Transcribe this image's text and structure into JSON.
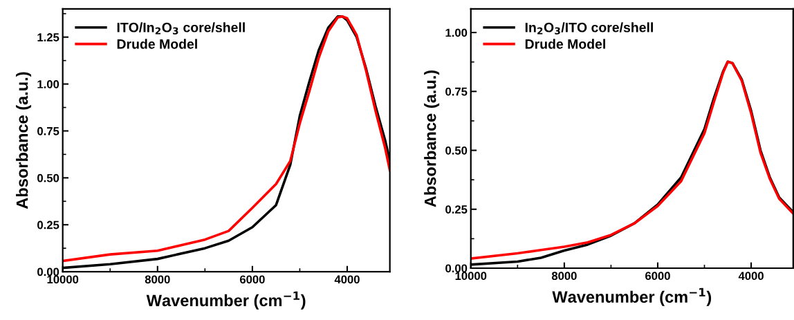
{
  "chart_data": [
    {
      "type": "line",
      "xlabel": "Wavenumber (cm$^{−1}$)",
      "ylabel": "Absorbance (a.u.)",
      "xlim": [
        10000,
        3100
      ],
      "xticks": [
        10000,
        8000,
        6000,
        4000
      ],
      "ylim": [
        0,
        1.4
      ],
      "yticks": [
        {
          "value": 0,
          "label": "0.00"
        },
        {
          "value": 0.25,
          "label": "0.25"
        },
        {
          "value": 0.5,
          "label": "0.50"
        },
        {
          "value": 0.75,
          "label": "0.75"
        },
        {
          "value": 1.0,
          "label": "1.00"
        },
        {
          "value": 1.25,
          "label": "1.25"
        }
      ],
      "grid": false,
      "legend": "top left",
      "line_style": "solid",
      "marker": "none",
      "x": [
        10000,
        9000,
        8000,
        7000,
        6500,
        6000,
        5500,
        5200,
        5000,
        4800,
        4600,
        4400,
        4200,
        4100,
        4000,
        3800,
        3600,
        3400,
        3200,
        3100
      ],
      "series": [
        {
          "name": "ITO/In$_{2}$O$_{3}$ core/shell",
          "color": "#000000",
          "values": [
            0.02,
            0.04,
            0.068,
            0.125,
            0.165,
            0.237,
            0.355,
            0.57,
            0.83,
            1.01,
            1.18,
            1.3,
            1.36,
            1.36,
            1.34,
            1.25,
            1.08,
            0.88,
            0.7,
            0.59
          ]
        },
        {
          "name": "Drude Model",
          "color": "#ff0000",
          "values": [
            0.057,
            0.092,
            0.112,
            0.171,
            0.217,
            0.34,
            0.467,
            0.59,
            0.79,
            0.96,
            1.14,
            1.28,
            1.355,
            1.36,
            1.35,
            1.26,
            1.07,
            0.855,
            0.66,
            0.54
          ]
        }
      ]
    },
    {
      "type": "line",
      "xlabel": "Wavenumber (cm$^{−1}$)",
      "ylabel": "Absorbance (a.u.)",
      "xlim": [
        10000,
        3100
      ],
      "xticks": [
        10000,
        8000,
        6000,
        4000
      ],
      "ylim": [
        0,
        1.1
      ],
      "yticks": [
        {
          "value": 0,
          "label": "0.00"
        },
        {
          "value": 0.25,
          "label": "0.25"
        },
        {
          "value": 0.5,
          "label": "0.50"
        },
        {
          "value": 0.75,
          "label": "0.75"
        },
        {
          "value": 1.0,
          "label": "1.00"
        }
      ],
      "grid": false,
      "legend": "top left",
      "line_style": "solid",
      "marker": "none",
      "x": [
        10000,
        9000,
        8500,
        8000,
        7500,
        7000,
        6500,
        6000,
        5500,
        5000,
        4800,
        4600,
        4500,
        4400,
        4200,
        4000,
        3800,
        3600,
        3400,
        3100
      ],
      "series": [
        {
          "name": "In$_{2}$O$_{3}$/ITO core/shell",
          "color": "#000000",
          "values": [
            0.015,
            0.028,
            0.044,
            0.075,
            0.1,
            0.138,
            0.19,
            0.27,
            0.385,
            0.59,
            0.72,
            0.835,
            0.876,
            0.87,
            0.8,
            0.667,
            0.5,
            0.385,
            0.3,
            0.238
          ]
        },
        {
          "name": "Drude Model",
          "color": "#ff0000",
          "values": [
            0.041,
            0.063,
            0.077,
            0.091,
            0.109,
            0.141,
            0.19,
            0.264,
            0.369,
            0.573,
            0.704,
            0.83,
            0.876,
            0.87,
            0.795,
            0.657,
            0.49,
            0.379,
            0.295,
            0.232
          ]
        }
      ]
    }
  ]
}
